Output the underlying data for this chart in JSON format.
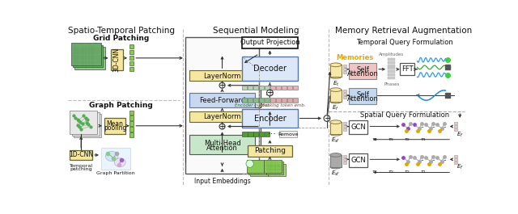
{
  "title_left": "Spatio-Temporal Patching",
  "title_mid": "Sequential Modeling",
  "title_right": "Memory Retrieval Augmentation",
  "bg_color": "#ffffff",
  "box_yellow": "#f5e6a0",
  "box_blue_light": "#c8d8f0",
  "box_green_light": "#c8e6c9",
  "box_pink": "#f0c4c4",
  "box_blue2": "#c4d8f0",
  "text_color": "#000000",
  "orange_text": "#e6a800",
  "arrow_color": "#333333",
  "dashed_color": "#aaaaaa",
  "encoder_bg": "#dce8f8",
  "decoder_bg": "#dce8f8"
}
